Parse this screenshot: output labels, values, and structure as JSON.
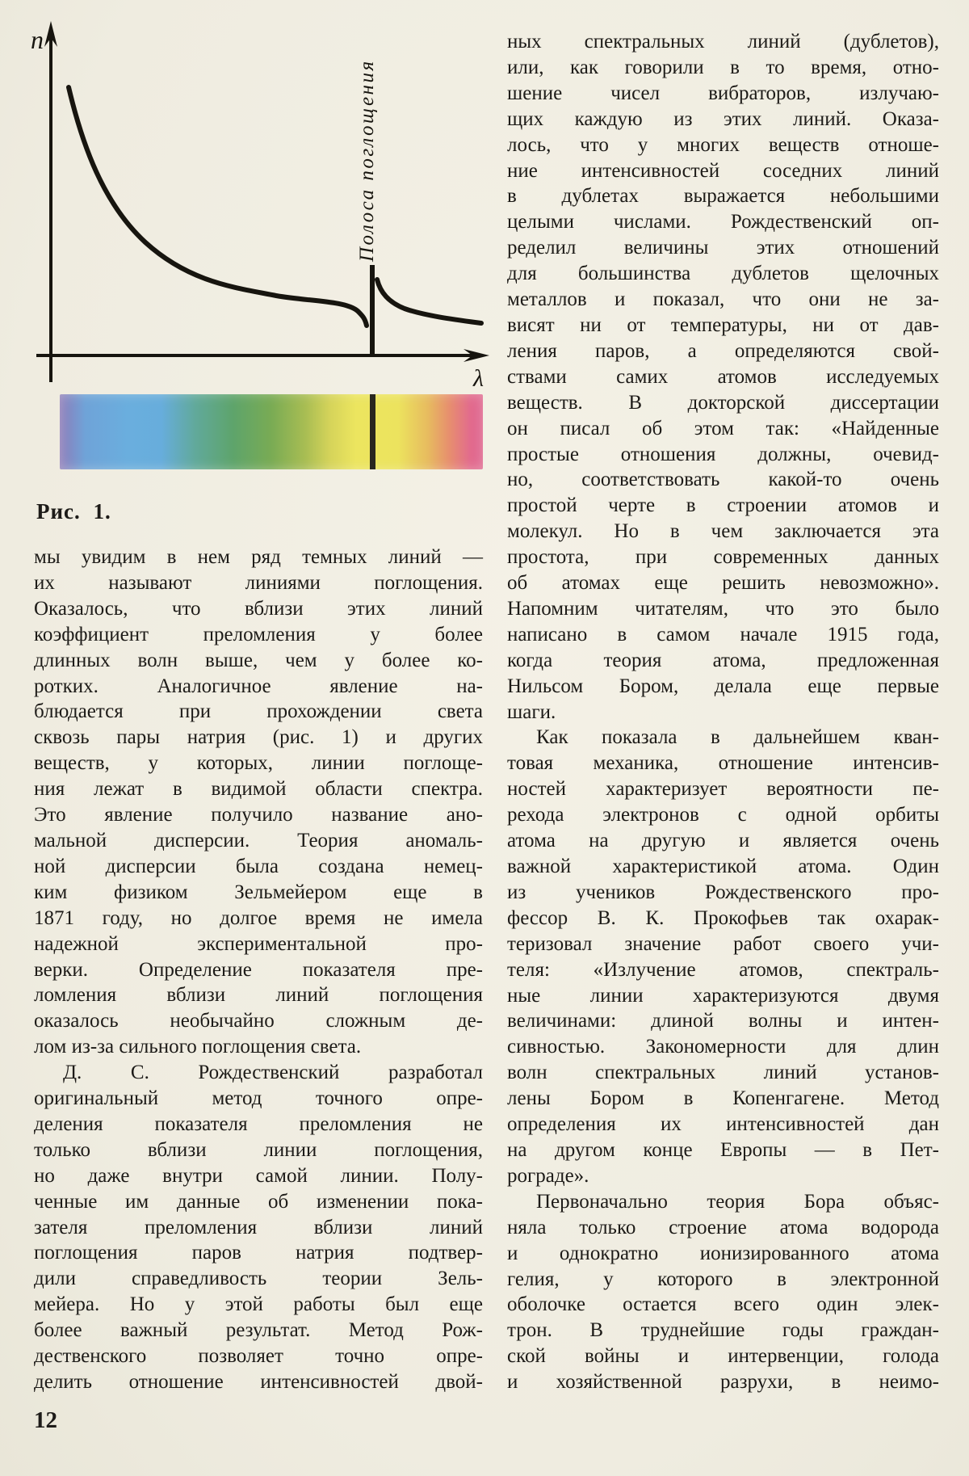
{
  "figure": {
    "y_axis_label": "n",
    "x_axis_label": "λ",
    "band_label": "Полоса поглощения",
    "caption": "Рис. 1.",
    "spectrum": {
      "left_color": "#8d7cba",
      "blue": "#6aaede",
      "green": "#5ea46b",
      "yellow": "#ece55f",
      "orange": "#e78f6e",
      "right_color": "#df648f",
      "absorption_line_color": "#29271f"
    }
  },
  "left_column": {
    "lines": [
      {
        "t": "мы увидим в нем ряд темных линий —"
      },
      {
        "t": "их называют линиями поглощения."
      },
      {
        "t": "Оказалось, что вблизи этих линий"
      },
      {
        "t": "коэффициент преломления у более"
      },
      {
        "t": "длинных волн выше, чем у более ко-"
      },
      {
        "t": "ротких. Аналогичное явление на-"
      },
      {
        "t": "блюдается при прохождении света"
      },
      {
        "t": "сквозь пары натрия (рис. 1) и других"
      },
      {
        "t": "веществ, у которых, линии поглоще-"
      },
      {
        "t": "ния лежат в видимой области спектра."
      },
      {
        "t": "Это явление получило название ано-"
      },
      {
        "t": "мальной дисперсии. Теория аномаль-"
      },
      {
        "t": "ной дисперсии была создана немец-"
      },
      {
        "t": "ким физиком Зельмейером еще в"
      },
      {
        "t": "1871 году, но долгое время не имела"
      },
      {
        "t": "надежной экспериментальной про-"
      },
      {
        "t": "верки. Определение показателя пре-"
      },
      {
        "t": "ломления вблизи линий поглощения"
      },
      {
        "t": "оказалось необычайно сложным де-"
      },
      {
        "t": "лом из-за сильного поглощения света.",
        "end": true
      },
      {
        "t": "Д. С. Рождественский разработал",
        "indent": true
      },
      {
        "t": "оригинальный метод точного опре-"
      },
      {
        "t": "деления показателя преломления не"
      },
      {
        "t": "только вблизи линии поглощения,"
      },
      {
        "t": "но даже внутри самой линии. Полу-"
      },
      {
        "t": "ченные им данные об изменении пока-"
      },
      {
        "t": "зателя преломления вблизи линий"
      },
      {
        "t": "поглощения паров натрия подтвер-"
      },
      {
        "t": "дили справедливость теории Зель-"
      },
      {
        "t": "мейера. Но у этой работы был еще"
      },
      {
        "t": "более важный результат. Метод Рож-"
      },
      {
        "t": "дественского позволяет точно опре-"
      },
      {
        "t": "делить отношение интенсивностей двой-"
      }
    ]
  },
  "right_column": {
    "lines": [
      {
        "t": "ных спектральных линий (дублетов),"
      },
      {
        "t": "или, как говорили в то время, отно-"
      },
      {
        "t": "шение чисел вибраторов, излучаю-"
      },
      {
        "t": "щих каждую из этих линий. Оказа-"
      },
      {
        "t": "лось, что у многих веществ отноше-"
      },
      {
        "t": "ние интенсивностей соседних линий"
      },
      {
        "t": "в дублетах выражается небольшими"
      },
      {
        "t": "целыми числами. Рождественский оп-"
      },
      {
        "t": "ределил величины этих отношений"
      },
      {
        "t": "для большинства дублетов щелочных"
      },
      {
        "t": "металлов и показал, что они не за-"
      },
      {
        "t": "висят ни от температуры, ни от дав-"
      },
      {
        "t": "ления паров, а определяются свой-"
      },
      {
        "t": "ствами самих атомов исследуемых"
      },
      {
        "t": "веществ. В докторской диссертации"
      },
      {
        "t": "он писал об этом так: «Найденные"
      },
      {
        "t": "простые отношения должны, очевид-"
      },
      {
        "t": "но, соответствовать какой-то очень"
      },
      {
        "t": "простой черте в строении атомов и"
      },
      {
        "t": "молекул. Но в чем заключается эта"
      },
      {
        "t": "простота, при современных данных"
      },
      {
        "t": "об атомах еще решить невозможно»."
      },
      {
        "t": "Напомним читателям, что это было"
      },
      {
        "t": "написано в самом начале 1915 года,"
      },
      {
        "t": "когда теория атома, предложенная"
      },
      {
        "t": "Нильсом Бором, делала еще первые"
      },
      {
        "t": "шаги.",
        "end": true
      },
      {
        "t": "Как показала в дальнейшем кван-",
        "indent": true
      },
      {
        "t": "товая механика, отношение интенсив-"
      },
      {
        "t": "ностей характеризует вероятности пе-"
      },
      {
        "t": "рехода электронов с одной орбиты"
      },
      {
        "t": "атома на другую и является очень"
      },
      {
        "t": "важной характеристикой атома. Один"
      },
      {
        "t": "из учеников Рождественского про-"
      },
      {
        "t": "фессор В. К. Прокофьев так охарак-"
      },
      {
        "t": "теризовал значение работ своего учи-"
      },
      {
        "t": "теля: «Излучение атомов, спектраль-"
      },
      {
        "t": "ные линии характеризуются двумя"
      },
      {
        "t": "величинами: длиной волны и интен-"
      },
      {
        "t": "сивностью. Закономерности для длин"
      },
      {
        "t": "волн спектральных линий установ-"
      },
      {
        "t": "лены Бором в Копенгагене. Метод"
      },
      {
        "t": "определения их интенсивностей дан"
      },
      {
        "t": "на другом конце Европы — в Пет-"
      },
      {
        "t": "рограде».",
        "end": true
      },
      {
        "t": "Первоначально теория Бора объяс-",
        "indent": true
      },
      {
        "t": "няла только строение атома водорода"
      },
      {
        "t": "и однократно ионизированного атома"
      },
      {
        "t": "гелия, у которого в электронной"
      },
      {
        "t": "оболочке остается всего один элек-"
      },
      {
        "t": "трон. В труднейшие годы граждан-"
      },
      {
        "t": "ской войны и интервенции, голода"
      },
      {
        "t": "и хозяйственной разрухи, в неимо-"
      }
    ]
  },
  "page_number": "12"
}
